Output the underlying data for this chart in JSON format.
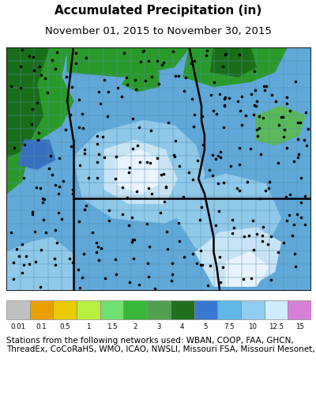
{
  "title": "Accumulated Precipitation (in)",
  "subtitle": "November 01, 2015 to November 30, 2015",
  "title_fontsize": 11,
  "subtitle_fontsize": 9.5,
  "legend_labels": [
    "0.01",
    "0.1",
    "0.5",
    "1",
    "1.5",
    "2",
    "3",
    "4",
    "5",
    "7.5",
    "10",
    "12.5",
    "15"
  ],
  "legend_colors": [
    "#c0c0c0",
    "#e8a000",
    "#e8cc00",
    "#b8f040",
    "#70e070",
    "#38b838",
    "#50a050",
    "#207020",
    "#3878d0",
    "#60b8e8",
    "#90cef0",
    "#d0ecff",
    "#d880d8"
  ],
  "footer_text": "Stations from the following networks used: WBAN, COOP, FAA, GHCN,\nThreadEx, CoCoRaHS, WMO, ICAO, NWSLI, Missouri FSA, Missouri Mesonet,",
  "footer_fontsize": 7.5,
  "fig_bg_color": "#ffffff",
  "map_colors": {
    "bg_medium_blue": "#60a8d8",
    "light_blue": "#90c8e8",
    "very_light_blue": "#c8e4f4",
    "near_white": "#e8f4ff",
    "dark_green": "#1a6e1a",
    "medium_green": "#2a9a2a",
    "light_green": "#5ab85a",
    "county_line": "#5090b0",
    "state_border": "#000000"
  },
  "map_county_nx": 22,
  "map_county_ny": 18
}
